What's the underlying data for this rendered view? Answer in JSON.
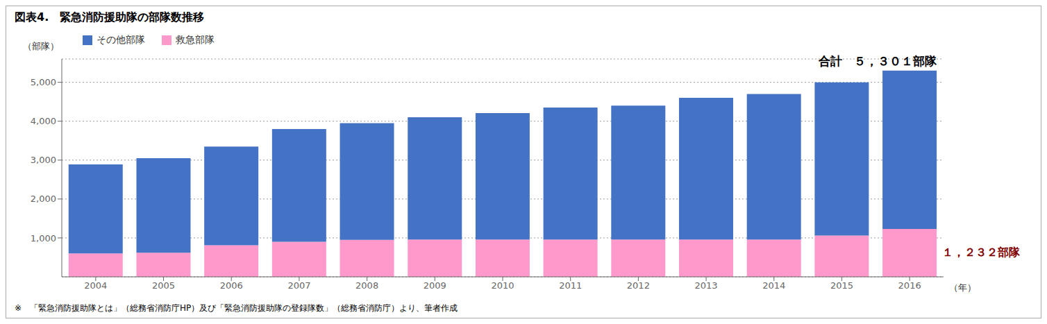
{
  "chart_data": {
    "type": "bar",
    "stacked": true,
    "title": "図表4.　緊急消防援助隊の部隊数推移",
    "ylabel": "（部隊）",
    "xlabel": "（年）",
    "categories": [
      "2004",
      "2005",
      "2006",
      "2007",
      "2008",
      "2009",
      "2010",
      "2011",
      "2012",
      "2013",
      "2014",
      "2015",
      "2016"
    ],
    "series": [
      {
        "name": "救急部隊",
        "color": "#FF99CC",
        "values": [
          600,
          620,
          810,
          900,
          950,
          960,
          960,
          960,
          960,
          960,
          960,
          1060,
          1232
        ]
      },
      {
        "name": "その他部隊",
        "color": "#4472C4",
        "values": [
          2290,
          2430,
          2540,
          2900,
          3000,
          3140,
          3250,
          3390,
          3440,
          3640,
          3740,
          3940,
          4069
        ]
      }
    ],
    "ylim": [
      0,
      5600
    ],
    "yticks": [
      {
        "value": 1000,
        "label": "1,000"
      },
      {
        "value": 2000,
        "label": "2,000"
      },
      {
        "value": 3000,
        "label": "3,000"
      },
      {
        "value": 4000,
        "label": "4,000"
      },
      {
        "value": 5000,
        "label": "5,000"
      }
    ],
    "grid": true,
    "legend": "upper left",
    "annotations": [
      {
        "text": "合計　５，３０１部隊"
      },
      {
        "text": "１，２３２部隊",
        "color": "#800000"
      }
    ],
    "footer": "※　「緊急消防援助隊とは」（総務省消防庁HP）及び「緊急消防援助隊の登録隊数」（総務省消防庁）より、筆者作成"
  }
}
